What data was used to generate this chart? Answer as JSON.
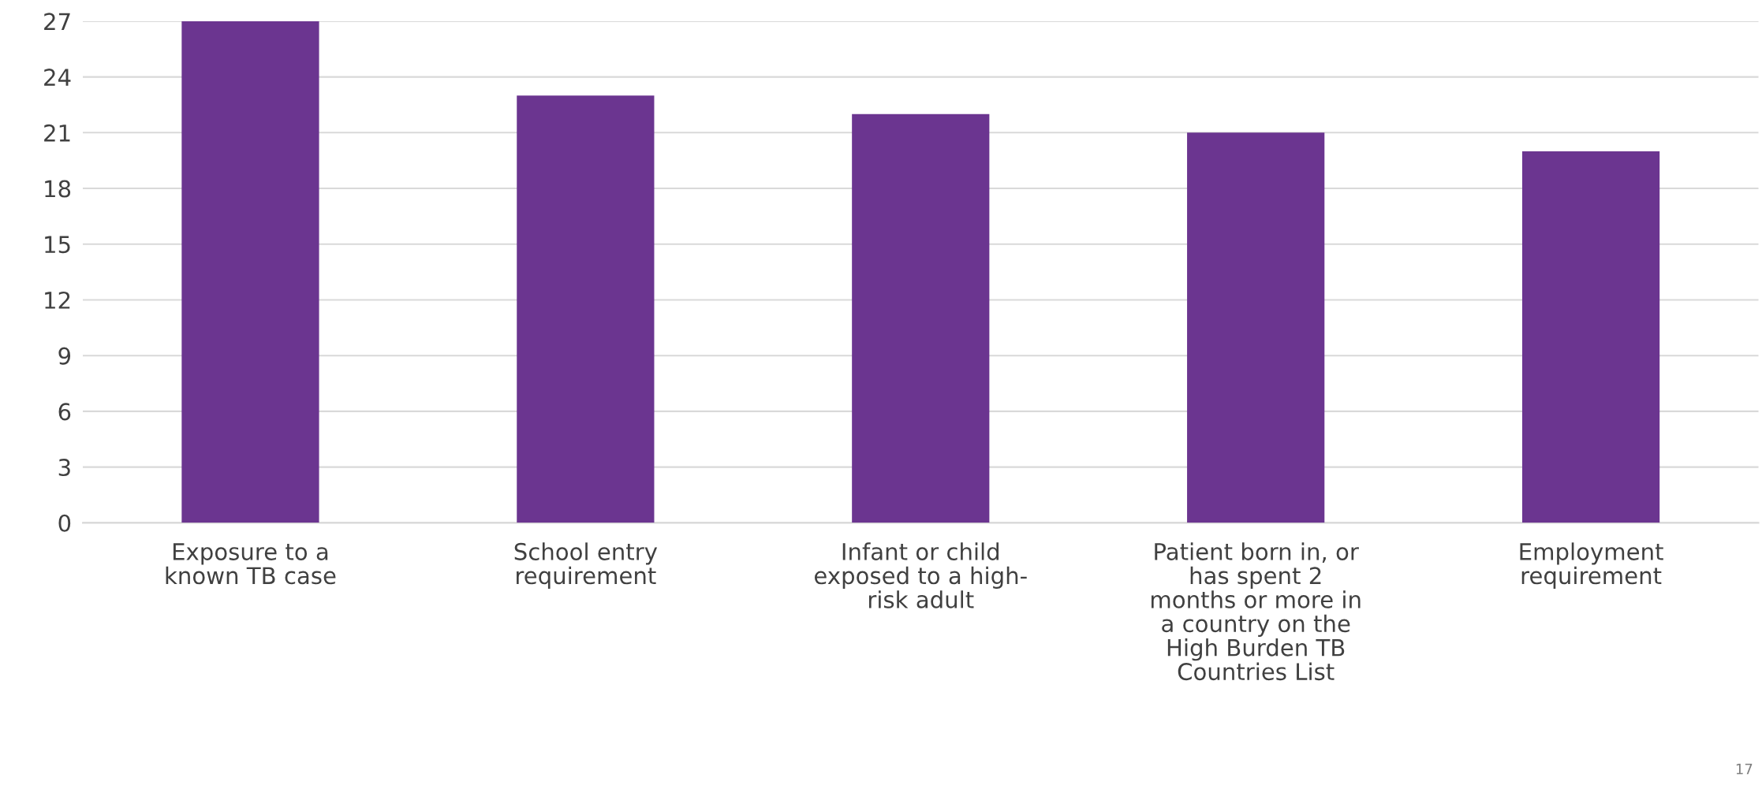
{
  "chart_data": {
    "type": "bar",
    "categories": [
      "Exposure to a\nknown TB case",
      "School entry\nrequirement",
      "Infant or child\nexposed to a high-\nrisk adult",
      "Patient born in, or\nhas spent 2\nmonths or more in\na country on the\nHigh Burden TB\nCountries List",
      "Employment\nrequirement"
    ],
    "values": [
      27,
      23,
      22,
      21,
      20
    ],
    "color": "#6b3590",
    "ylim": [
      0,
      27
    ],
    "yticks": [
      0,
      3,
      6,
      9,
      12,
      15,
      18,
      21,
      24,
      27
    ],
    "grid": "y",
    "annotations": [
      "17"
    ]
  }
}
